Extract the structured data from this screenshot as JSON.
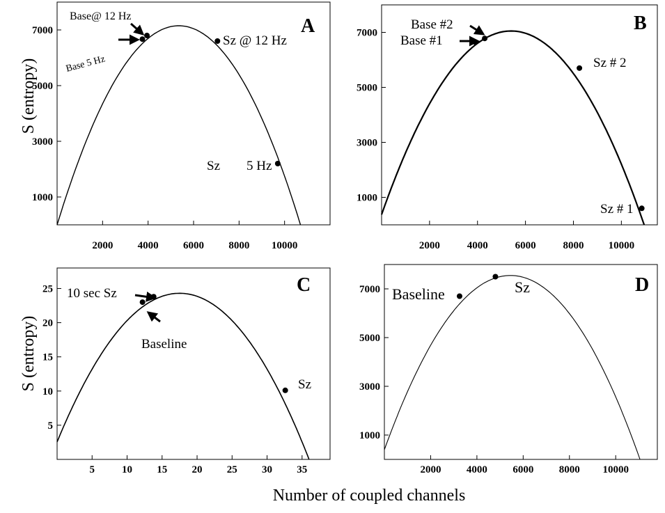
{
  "figure": {
    "ylabel": "S (entropy)",
    "xlabel": "Number of coupled channels"
  },
  "chart_data": [
    {
      "panel": "A",
      "type": "line",
      "xticks": [
        "2000",
        "4000",
        "6000",
        "8000",
        "10000"
      ],
      "yticks": [
        "1000",
        "3000",
        "5000",
        "7000"
      ],
      "xlim": [
        0,
        12000
      ],
      "ylim": [
        0,
        8000
      ],
      "curve": {
        "peak_x": 5350,
        "peak_y": 7150,
        "root_left": 0,
        "root_right": 10700
      },
      "points": [
        {
          "x": 3750,
          "y": 6670
        },
        {
          "x": 3950,
          "y": 6800
        },
        {
          "x": 7050,
          "y": 6600
        },
        {
          "x": 9700,
          "y": 2200
        }
      ],
      "annotations": [
        "Base@ 12 Hz",
        "Base 5 Hz",
        "Sz @ 12 Hz",
        "Sz",
        "5 Hz"
      ]
    },
    {
      "panel": "B",
      "type": "line",
      "xticks": [
        "2000",
        "4000",
        "6000",
        "8000",
        "10000"
      ],
      "yticks": [
        "1000",
        "3000",
        "5000",
        "7000"
      ],
      "xlim": [
        0,
        11500
      ],
      "ylim": [
        0,
        8000
      ],
      "curve": {
        "peak_x": 5400,
        "peak_y": 7050,
        "root_left": 0,
        "root_right": 10950
      },
      "points": [
        {
          "x": 3900,
          "y": 6650
        },
        {
          "x": 4300,
          "y": 6780
        },
        {
          "x": 8250,
          "y": 5700
        },
        {
          "x": 10850,
          "y": 600
        }
      ],
      "annotations": [
        "Base #2",
        "Base #1",
        "Sz # 2",
        "Sz # 1"
      ]
    },
    {
      "panel": "C",
      "type": "line",
      "xticks": [
        "5",
        "10",
        "15",
        "20",
        "25",
        "30",
        "35"
      ],
      "yticks": [
        "5",
        "10",
        "15",
        "20",
        "25"
      ],
      "xlim": [
        0,
        39
      ],
      "ylim": [
        0,
        28
      ],
      "curve": {
        "peak_x": 17.5,
        "peak_y": 24.3,
        "root_left": 0,
        "root_right": 36
      },
      "points": [
        {
          "x": 12.2,
          "y": 23.0
        },
        {
          "x": 13.8,
          "y": 23.8
        },
        {
          "x": 32.6,
          "y": 10.1
        }
      ],
      "annotations": [
        "10 sec Sz",
        "Baseline",
        "Sz"
      ]
    },
    {
      "panel": "D",
      "type": "line",
      "xticks": [
        "2000",
        "4000",
        "6000",
        "8000",
        "10000"
      ],
      "yticks": [
        "1000",
        "3000",
        "5000",
        "7000"
      ],
      "xlim": [
        0,
        11800
      ],
      "ylim": [
        0,
        8000
      ],
      "curve": {
        "peak_x": 5450,
        "peak_y": 7550,
        "root_left": 0,
        "root_right": 11050
      },
      "points": [
        {
          "x": 3250,
          "y": 6700
        },
        {
          "x": 4800,
          "y": 7500
        }
      ],
      "annotations": [
        "Baseline",
        "Sz"
      ]
    }
  ]
}
